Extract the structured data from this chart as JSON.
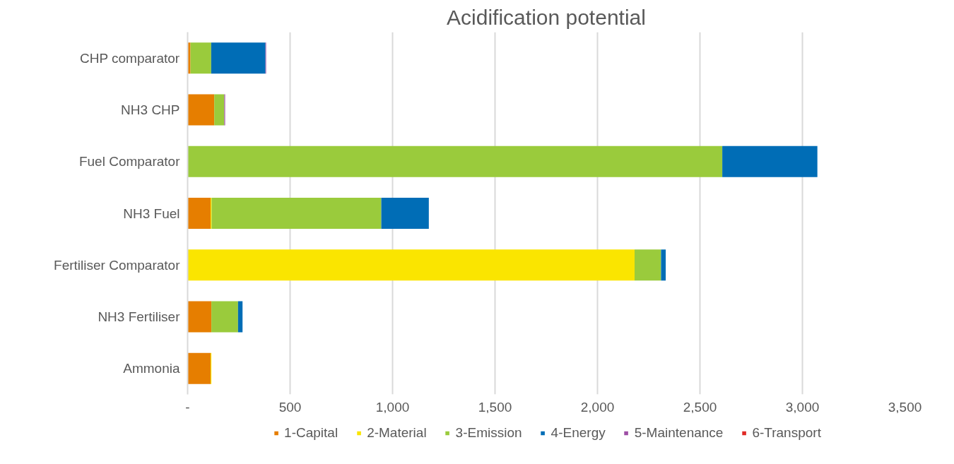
{
  "chart_data": {
    "type": "bar",
    "title": "Acidification potential",
    "orientation": "horizontal",
    "stacked": true,
    "categories": [
      "CHP comparator",
      "NH3 CHP",
      "Fuel Comparator",
      "NH3 Fuel",
      "Fertiliser Comparator",
      "NH3 Fertiliser",
      "Ammonia"
    ],
    "series": [
      {
        "name": "1-Capital",
        "color": "#e67e00",
        "values": [
          14,
          130,
          0,
          112,
          0,
          116,
          112
        ]
      },
      {
        "name": "2-Material",
        "color": "#fae500",
        "values": [
          0,
          0,
          0,
          5,
          2181,
          0,
          4
        ]
      },
      {
        "name": "3-Emission",
        "color": "#9acb3c",
        "values": [
          101,
          49,
          2609,
          828,
          129,
          130,
          0
        ]
      },
      {
        "name": "4-Energy",
        "color": "#006db6",
        "values": [
          265,
          0,
          464,
          232,
          23,
          22,
          0
        ]
      },
      {
        "name": "5-Maintenance",
        "color": "#9e4fa5",
        "values": [
          3,
          4,
          0,
          0,
          0,
          0,
          0
        ]
      },
      {
        "name": "6-Transport",
        "color": "#e02a26",
        "values": [
          0,
          0,
          0,
          0,
          0,
          0,
          0
        ]
      }
    ],
    "xlim": [
      0,
      3500
    ],
    "xticks": [
      {
        "value": 0,
        "label": "-"
      },
      {
        "value": 500,
        "label": "500"
      },
      {
        "value": 1000,
        "label": "1,000"
      },
      {
        "value": 1500,
        "label": "1,500"
      },
      {
        "value": 2000,
        "label": "2,000"
      },
      {
        "value": 2500,
        "label": "2,500"
      },
      {
        "value": 3000,
        "label": "3,000"
      },
      {
        "value": 3500,
        "label": "3,500"
      }
    ],
    "grid": "x",
    "legend": "bottom"
  }
}
